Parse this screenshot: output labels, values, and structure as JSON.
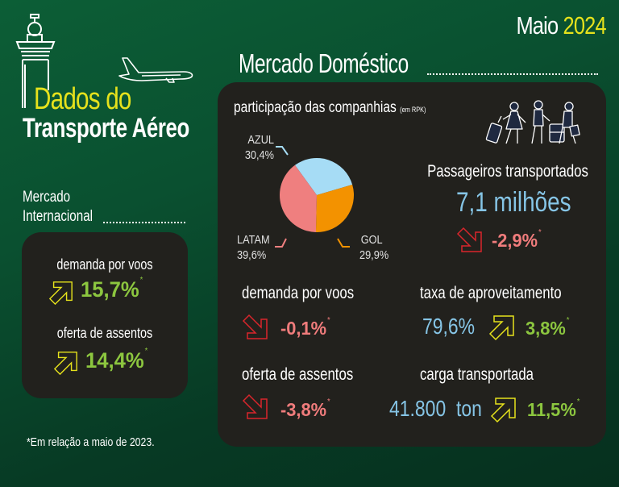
{
  "header": {
    "month": "Maio",
    "year": "2024",
    "title_line1": "Dados do",
    "title_line2": "Transporte Aéreo"
  },
  "colors": {
    "background_green": "#0a5030",
    "panel_dark": "#22211d",
    "accent_yellow": "#e6e21c",
    "positive_green": "#8cc63f",
    "negative_red": "#f07c7c",
    "value_blue": "#86c5e6",
    "arrow_down_red": "#d9262c",
    "arrow_up_yellow": "#e6e21c"
  },
  "domestic": {
    "title": "Mercado Doméstico",
    "market_share": {
      "title": "participação das companhias",
      "unit_note": "(em RPK)"
    },
    "passengers": {
      "label": "Passageiros transportados",
      "value": "7,1 milhões",
      "change": "-2,9%",
      "asterisk": "*",
      "direction": "down"
    },
    "flight_demand": {
      "label": "demanda por voos",
      "change": "-0,1%",
      "asterisk": "*",
      "direction": "down"
    },
    "load_factor": {
      "label": "taxa de aproveitamento",
      "value": "79,6%",
      "change": "3,8%",
      "asterisk": "*",
      "direction": "up"
    },
    "seat_supply": {
      "label": "oferta de assentos",
      "change": "-3,8%",
      "asterisk": "*",
      "direction": "down"
    },
    "cargo": {
      "label": "carga transportada",
      "value": "41.800  ton",
      "change": "11,5%",
      "asterisk": "*",
      "direction": "up"
    }
  },
  "international": {
    "title_line1": "Mercado",
    "title_line2": "Internacional",
    "flight_demand": {
      "label": "demanda por voos",
      "change": "15,7%",
      "asterisk": "*",
      "direction": "up"
    },
    "seat_supply": {
      "label": "oferta de assentos",
      "change": "14,4%",
      "asterisk": "*",
      "direction": "up"
    }
  },
  "footnote": "*Em relação a maio de 2023.",
  "icons": {
    "tower": "control-tower-icon",
    "plane": "airplane-icon",
    "travelers": "travelers-icon",
    "arrow_up": "arrow-up-right-icon",
    "arrow_down": "arrow-down-right-icon"
  },
  "chart_data": {
    "type": "pie",
    "title": "participação das companhias (em RPK)",
    "categories": [
      "AZUL",
      "GOL",
      "LATAM"
    ],
    "values": [
      30.4,
      29.9,
      39.6
    ],
    "labels": [
      "30,4%",
      "29,9%",
      "39,6%"
    ],
    "colors": [
      "#a6dcf5",
      "#f39200",
      "#ef7f7f"
    ]
  }
}
